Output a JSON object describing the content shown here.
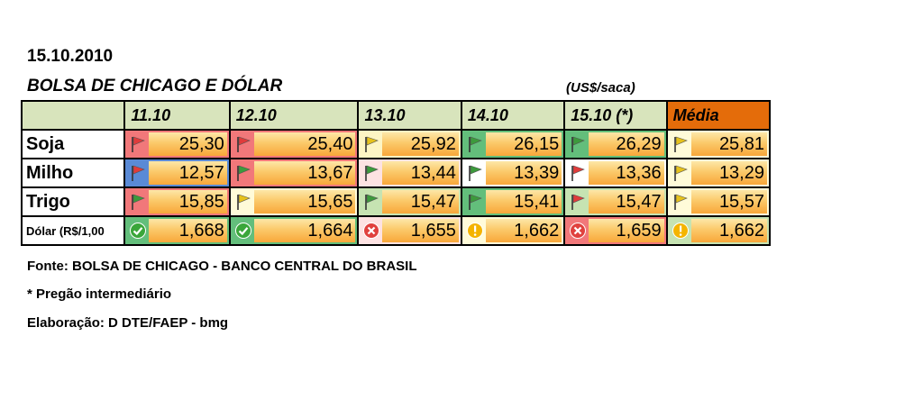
{
  "header": {
    "date": "15.10.2010",
    "title": "BOLSA DE CHICAGO  E DÓLAR",
    "unit": "(US$/saca)"
  },
  "table": {
    "columns": [
      "11.10",
      "12.10",
      "13.10",
      "14.10",
      "15.10 (*)",
      "Média"
    ],
    "rows": [
      {
        "label": "Soja",
        "cells": [
          {
            "value": "25,30",
            "icon": "flag-red",
            "bg": "red"
          },
          {
            "value": "25,40",
            "icon": "flag-red",
            "bg": "red"
          },
          {
            "value": "25,92",
            "icon": "flag-yellow",
            "bg": "yellow"
          },
          {
            "value": "26,15",
            "icon": "flag-green",
            "bg": "green"
          },
          {
            "value": "26,29",
            "icon": "flag-green",
            "bg": "green"
          },
          {
            "value": "25,81",
            "icon": "flag-yellow",
            "bg": "lyellow"
          }
        ]
      },
      {
        "label": "Milho",
        "cells": [
          {
            "value": "12,57",
            "icon": "flag-red",
            "bg": "blue"
          },
          {
            "value": "13,67",
            "icon": "flag-green",
            "bg": "red"
          },
          {
            "value": "13,44",
            "icon": "flag-green",
            "bg": "pink"
          },
          {
            "value": "13,39",
            "icon": "flag-green",
            "bg": "white"
          },
          {
            "value": "13,36",
            "icon": "flag-red",
            "bg": "white"
          },
          {
            "value": "13,29",
            "icon": "flag-yellow",
            "bg": "lyellow"
          }
        ]
      },
      {
        "label": "Trigo",
        "cells": [
          {
            "value": "15,85",
            "icon": "flag-green",
            "bg": "red"
          },
          {
            "value": "15,65",
            "icon": "flag-yellow",
            "bg": "lyellow"
          },
          {
            "value": "15,47",
            "icon": "flag-green",
            "bg": "lgreen"
          },
          {
            "value": "15,41",
            "icon": "flag-green",
            "bg": "green"
          },
          {
            "value": "15,47",
            "icon": "flag-red",
            "bg": "lgreen"
          },
          {
            "value": "15,57",
            "icon": "flag-yellow",
            "bg": "lyellow"
          }
        ]
      },
      {
        "label": "Dólar (R$/1,00",
        "cells": [
          {
            "value": "1,668",
            "icon": "check-circle",
            "bg": "green"
          },
          {
            "value": "1,664",
            "icon": "check-circle",
            "bg": "green"
          },
          {
            "value": "1,655",
            "icon": "x-circle",
            "bg": "pink"
          },
          {
            "value": "1,662",
            "icon": "exclaim-circle",
            "bg": "lyellow"
          },
          {
            "value": "1,659",
            "icon": "x-circle",
            "bg": "red"
          },
          {
            "value": "1,662",
            "icon": "exclaim-circle",
            "bg": "lgreen"
          }
        ]
      }
    ]
  },
  "footer": {
    "source": "Fonte: BOLSA DE CHICAGO - BANCO CENTRAL DO BRASIL",
    "note": "* Pregão intermediário",
    "credit": "Elaboração: D DTE/FAEP - bmg"
  },
  "colors": {
    "header_bg": "#d8e4bc",
    "media_bg": "#e46c0a",
    "flag_red": "#e03b3b",
    "flag_green": "#3c9a3c",
    "flag_yellow": "#e6c21c"
  }
}
